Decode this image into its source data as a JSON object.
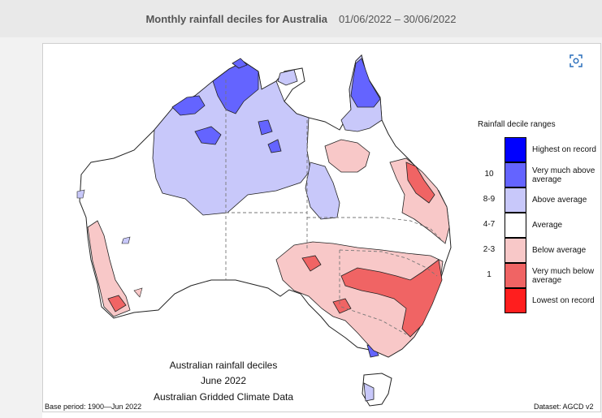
{
  "header": {
    "title": "Monthly rainfall deciles for Australia",
    "date_range": "01/06/2022 – 30/06/2022"
  },
  "map": {
    "caption_lines": [
      "Australian rainfall deciles",
      "June 2022",
      "Australian Gridded Climate Data"
    ],
    "base_period": "Base period: 1900—Jun 2022",
    "dataset": "Dataset: AGCD v2"
  },
  "legend": {
    "title": "Rainfall decile ranges",
    "items": [
      {
        "range": "",
        "label": "Highest on record",
        "color": "#0000ff"
      },
      {
        "range": "10",
        "label": "Very much above average",
        "color": "#6464ff"
      },
      {
        "range": "8-9",
        "label": "Above average",
        "color": "#c8c8fa"
      },
      {
        "range": "4-7",
        "label": "Average",
        "color": "#ffffff"
      },
      {
        "range": "2-3",
        "label": "Below average",
        "color": "#f8c8c8"
      },
      {
        "range": "1",
        "label": "Very much below average",
        "color": "#f06464"
      },
      {
        "range": "",
        "label": "Lowest on record",
        "color": "#ff1e1e"
      }
    ]
  },
  "toolbar": {
    "scan_icon": "scan-icon"
  }
}
